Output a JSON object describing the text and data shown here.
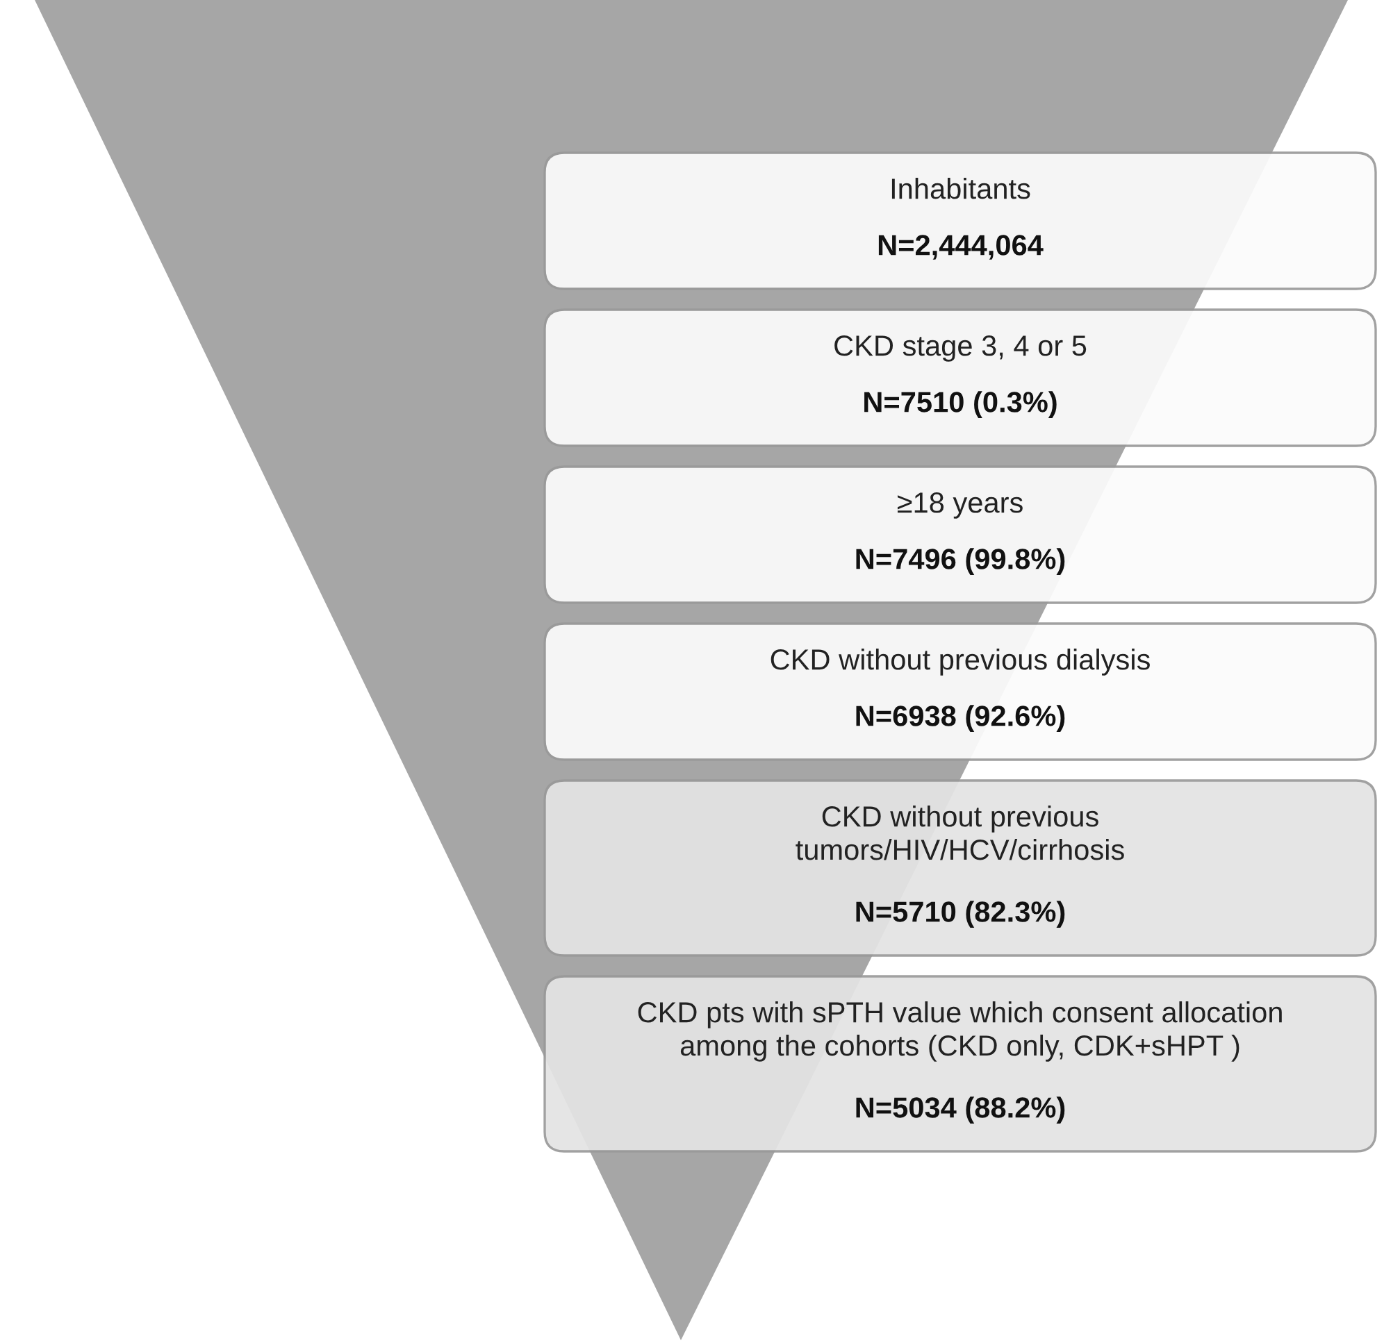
{
  "chart_data": {
    "type": "other",
    "categories": [
      "Inhabitants",
      "CKD stage 3, 4 or 5",
      "≥18 years",
      "CKD without previous dialysis",
      "CKD without previous\ntumors/HIV/HCV/cirrhosis",
      "CKD pts with sPTH value which consent allocation\namong the cohorts (CKD only, CDK+sHPT )"
    ],
    "values": [
      2444064,
      7510,
      7496,
      6938,
      5710,
      5034
    ],
    "value_labels": [
      "N=2,444,064",
      "N=7510 (0.3%)",
      "N=7496 (99.8%)",
      "N=6938 (92.6%)",
      "N=5710 (82.3%)",
      "N=5034 (88.2%)"
    ],
    "colors": [
      "#fbfbfb",
      "#fbfbfb",
      "#fbfbfb",
      "#fbfbfb",
      "#e4e4e4",
      "#e4e4e4"
    ],
    "color": "#a6a6a6"
  }
}
